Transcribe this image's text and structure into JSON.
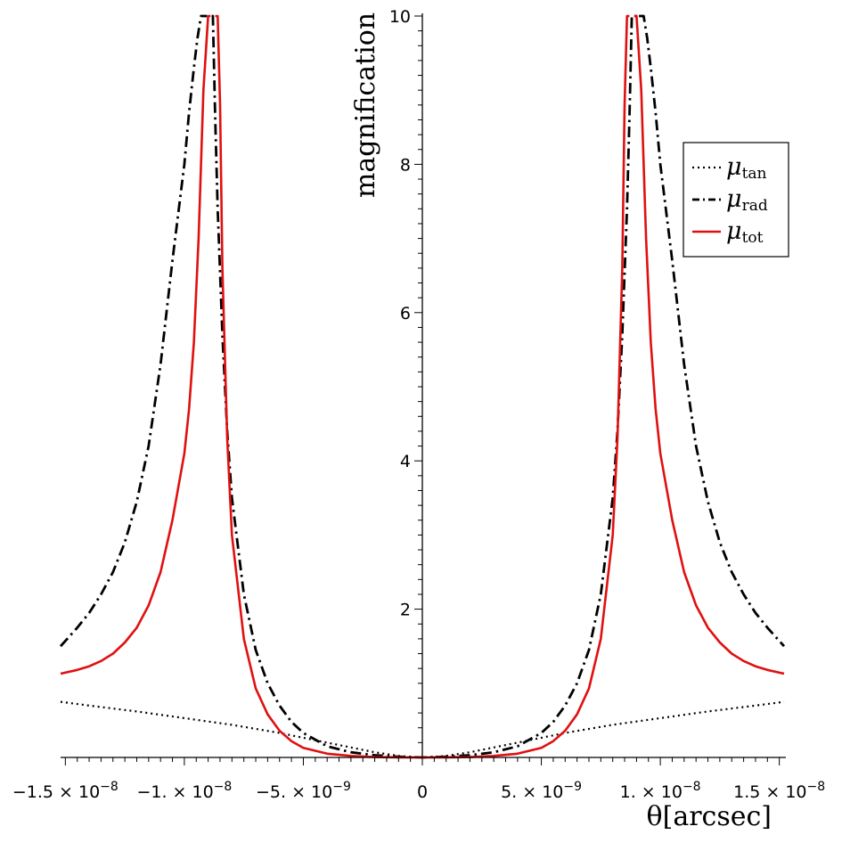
{
  "chart_data": {
    "type": "line",
    "title": "",
    "xlabel": "θ[arcsec]",
    "ylabel": "magnification",
    "xlim": [
      -1.52e-08,
      1.52e-08
    ],
    "ylim": [
      0,
      10
    ],
    "grid": false,
    "legend_position": "top-right",
    "x_ticks": [
      {
        "value": -1.5e-08,
        "mantissa": "−1.5",
        "exponent": "−8"
      },
      {
        "value": -1e-08,
        "mantissa": "−1.",
        "exponent": "−8"
      },
      {
        "value": -5e-09,
        "mantissa": "−5.",
        "exponent": "−9"
      },
      {
        "value": 0,
        "mantissa": "0",
        "exponent": ""
      },
      {
        "value": 5e-09,
        "mantissa": "5.",
        "exponent": "−9"
      },
      {
        "value": 1e-08,
        "mantissa": "1.",
        "exponent": "−8"
      },
      {
        "value": 1.5e-08,
        "mantissa": "1.5",
        "exponent": "−8"
      }
    ],
    "y_ticks": [
      2,
      4,
      6,
      8,
      10
    ],
    "times_symbol": "×",
    "tens_base": "10",
    "series": [
      {
        "name": "μ",
        "subscript": "tan",
        "style": "dotted",
        "color": "#000000",
        "x": [
          -1.52e-08,
          -1.4e-08,
          -1.2e-08,
          -1e-08,
          -8e-09,
          -6e-09,
          -4e-09,
          -2e-09,
          -1e-09,
          0,
          1e-09,
          2e-09,
          4e-09,
          6e-09,
          8e-09,
          1e-08,
          1.2e-08,
          1.4e-08,
          1.52e-08
        ],
        "y": [
          0.75,
          0.7,
          0.62,
          0.53,
          0.44,
          0.33,
          0.2,
          0.07,
          0.02,
          0,
          0.02,
          0.07,
          0.2,
          0.33,
          0.44,
          0.53,
          0.62,
          0.7,
          0.75
        ]
      },
      {
        "name": "μ",
        "subscript": "rad",
        "style": "dashdot",
        "color": "#000000",
        "x": [
          -1.52e-08,
          -1.45e-08,
          -1.4e-08,
          -1.35e-08,
          -1.3e-08,
          -1.25e-08,
          -1.2e-08,
          -1.15e-08,
          -1.1e-08,
          -1.05e-08,
          -1e-08,
          -9.8e-09,
          -9.6e-09,
          -9.45e-09,
          -9.3e-09,
          -9.2e-09,
          -9.1e-09,
          -9.05e-09,
          -8.85e-09,
          -8.8e-09,
          -8.7e-09,
          -8.6e-09,
          -8.4e-09,
          -8.2e-09,
          -8e-09,
          -7.5e-09,
          -7e-09,
          -6.5e-09,
          -6e-09,
          -5.5e-09,
          -5e-09,
          -4e-09,
          -3e-09,
          -2e-09,
          -1e-09,
          0,
          1e-09,
          2e-09,
          3e-09,
          4e-09,
          5e-09,
          5.5e-09,
          6e-09,
          6.5e-09,
          7e-09,
          7.5e-09,
          8e-09,
          8.2e-09,
          8.4e-09,
          8.6e-09,
          8.7e-09,
          8.8e-09,
          8.85e-09,
          9.05e-09,
          9.1e-09,
          9.2e-09,
          9.3e-09,
          9.45e-09,
          9.6e-09,
          9.8e-09,
          1e-08,
          1.05e-08,
          1.1e-08,
          1.15e-08,
          1.2e-08,
          1.25e-08,
          1.3e-08,
          1.35e-08,
          1.4e-08,
          1.45e-08,
          1.52e-08
        ],
        "y": [
          1.5,
          1.75,
          1.95,
          2.2,
          2.5,
          2.9,
          3.45,
          4.2,
          5.3,
          6.7,
          8.0,
          8.7,
          9.3,
          9.7,
          10.0,
          10.0,
          10.0,
          10.0,
          10.0,
          10.0,
          8.6,
          7.4,
          5.7,
          4.4,
          3.5,
          2.2,
          1.45,
          1.0,
          0.7,
          0.48,
          0.33,
          0.15,
          0.07,
          0.03,
          0.01,
          0,
          0.01,
          0.03,
          0.07,
          0.15,
          0.33,
          0.48,
          0.7,
          1.0,
          1.45,
          2.2,
          3.5,
          4.4,
          5.7,
          7.4,
          8.6,
          10.0,
          10.0,
          10.0,
          10.0,
          10.0,
          10.0,
          9.7,
          9.3,
          8.7,
          8.0,
          6.7,
          5.3,
          4.2,
          3.45,
          2.9,
          2.5,
          2.2,
          1.95,
          1.75,
          1.5
        ],
        "gap_after_x": [
          -9.05e-09,
          9.05e-09
        ]
      },
      {
        "name": "μ",
        "subscript": "tot",
        "style": "solid",
        "color": "#e01010",
        "x": [
          -1.52e-08,
          -1.45e-08,
          -1.4e-08,
          -1.35e-08,
          -1.3e-08,
          -1.25e-08,
          -1.2e-08,
          -1.15e-08,
          -1.1e-08,
          -1.05e-08,
          -1e-08,
          -9.8e-09,
          -9.6e-09,
          -9.4e-09,
          -9.2e-09,
          -9e-09,
          -8.9e-09,
          -8.7e-09,
          -8.6e-09,
          -8.5e-09,
          -8.4e-09,
          -8.2e-09,
          -8e-09,
          -7.5e-09,
          -7e-09,
          -6.5e-09,
          -6e-09,
          -5.5e-09,
          -5e-09,
          -4e-09,
          -3e-09,
          -2e-09,
          -1e-09,
          0,
          1e-09,
          2e-09,
          3e-09,
          4e-09,
          5e-09,
          5.5e-09,
          6e-09,
          6.5e-09,
          7e-09,
          7.5e-09,
          8e-09,
          8.2e-09,
          8.4e-09,
          8.5e-09,
          8.6e-09,
          8.7e-09,
          8.9e-09,
          9e-09,
          9.2e-09,
          9.4e-09,
          9.6e-09,
          9.8e-09,
          1e-08,
          1.05e-08,
          1.1e-08,
          1.15e-08,
          1.2e-08,
          1.25e-08,
          1.3e-08,
          1.35e-08,
          1.4e-08,
          1.45e-08,
          1.52e-08
        ],
        "y": [
          1.13,
          1.18,
          1.23,
          1.3,
          1.4,
          1.55,
          1.75,
          2.05,
          2.5,
          3.2,
          4.1,
          4.7,
          5.6,
          7.0,
          9.0,
          10.0,
          10.0,
          10.0,
          10.0,
          8.8,
          6.6,
          4.3,
          3.0,
          1.6,
          0.93,
          0.58,
          0.36,
          0.22,
          0.13,
          0.05,
          0.02,
          0.005,
          0.001,
          0,
          0.001,
          0.005,
          0.02,
          0.05,
          0.13,
          0.22,
          0.36,
          0.58,
          0.93,
          1.6,
          3.0,
          4.3,
          6.6,
          8.8,
          10.0,
          10.0,
          10.0,
          10.0,
          9.0,
          7.0,
          5.6,
          4.7,
          4.1,
          3.2,
          2.5,
          2.05,
          1.75,
          1.55,
          1.4,
          1.3,
          1.23,
          1.18,
          1.13
        ],
        "gap_after_x": [
          -8.9e-09,
          8.7e-09
        ]
      }
    ]
  }
}
